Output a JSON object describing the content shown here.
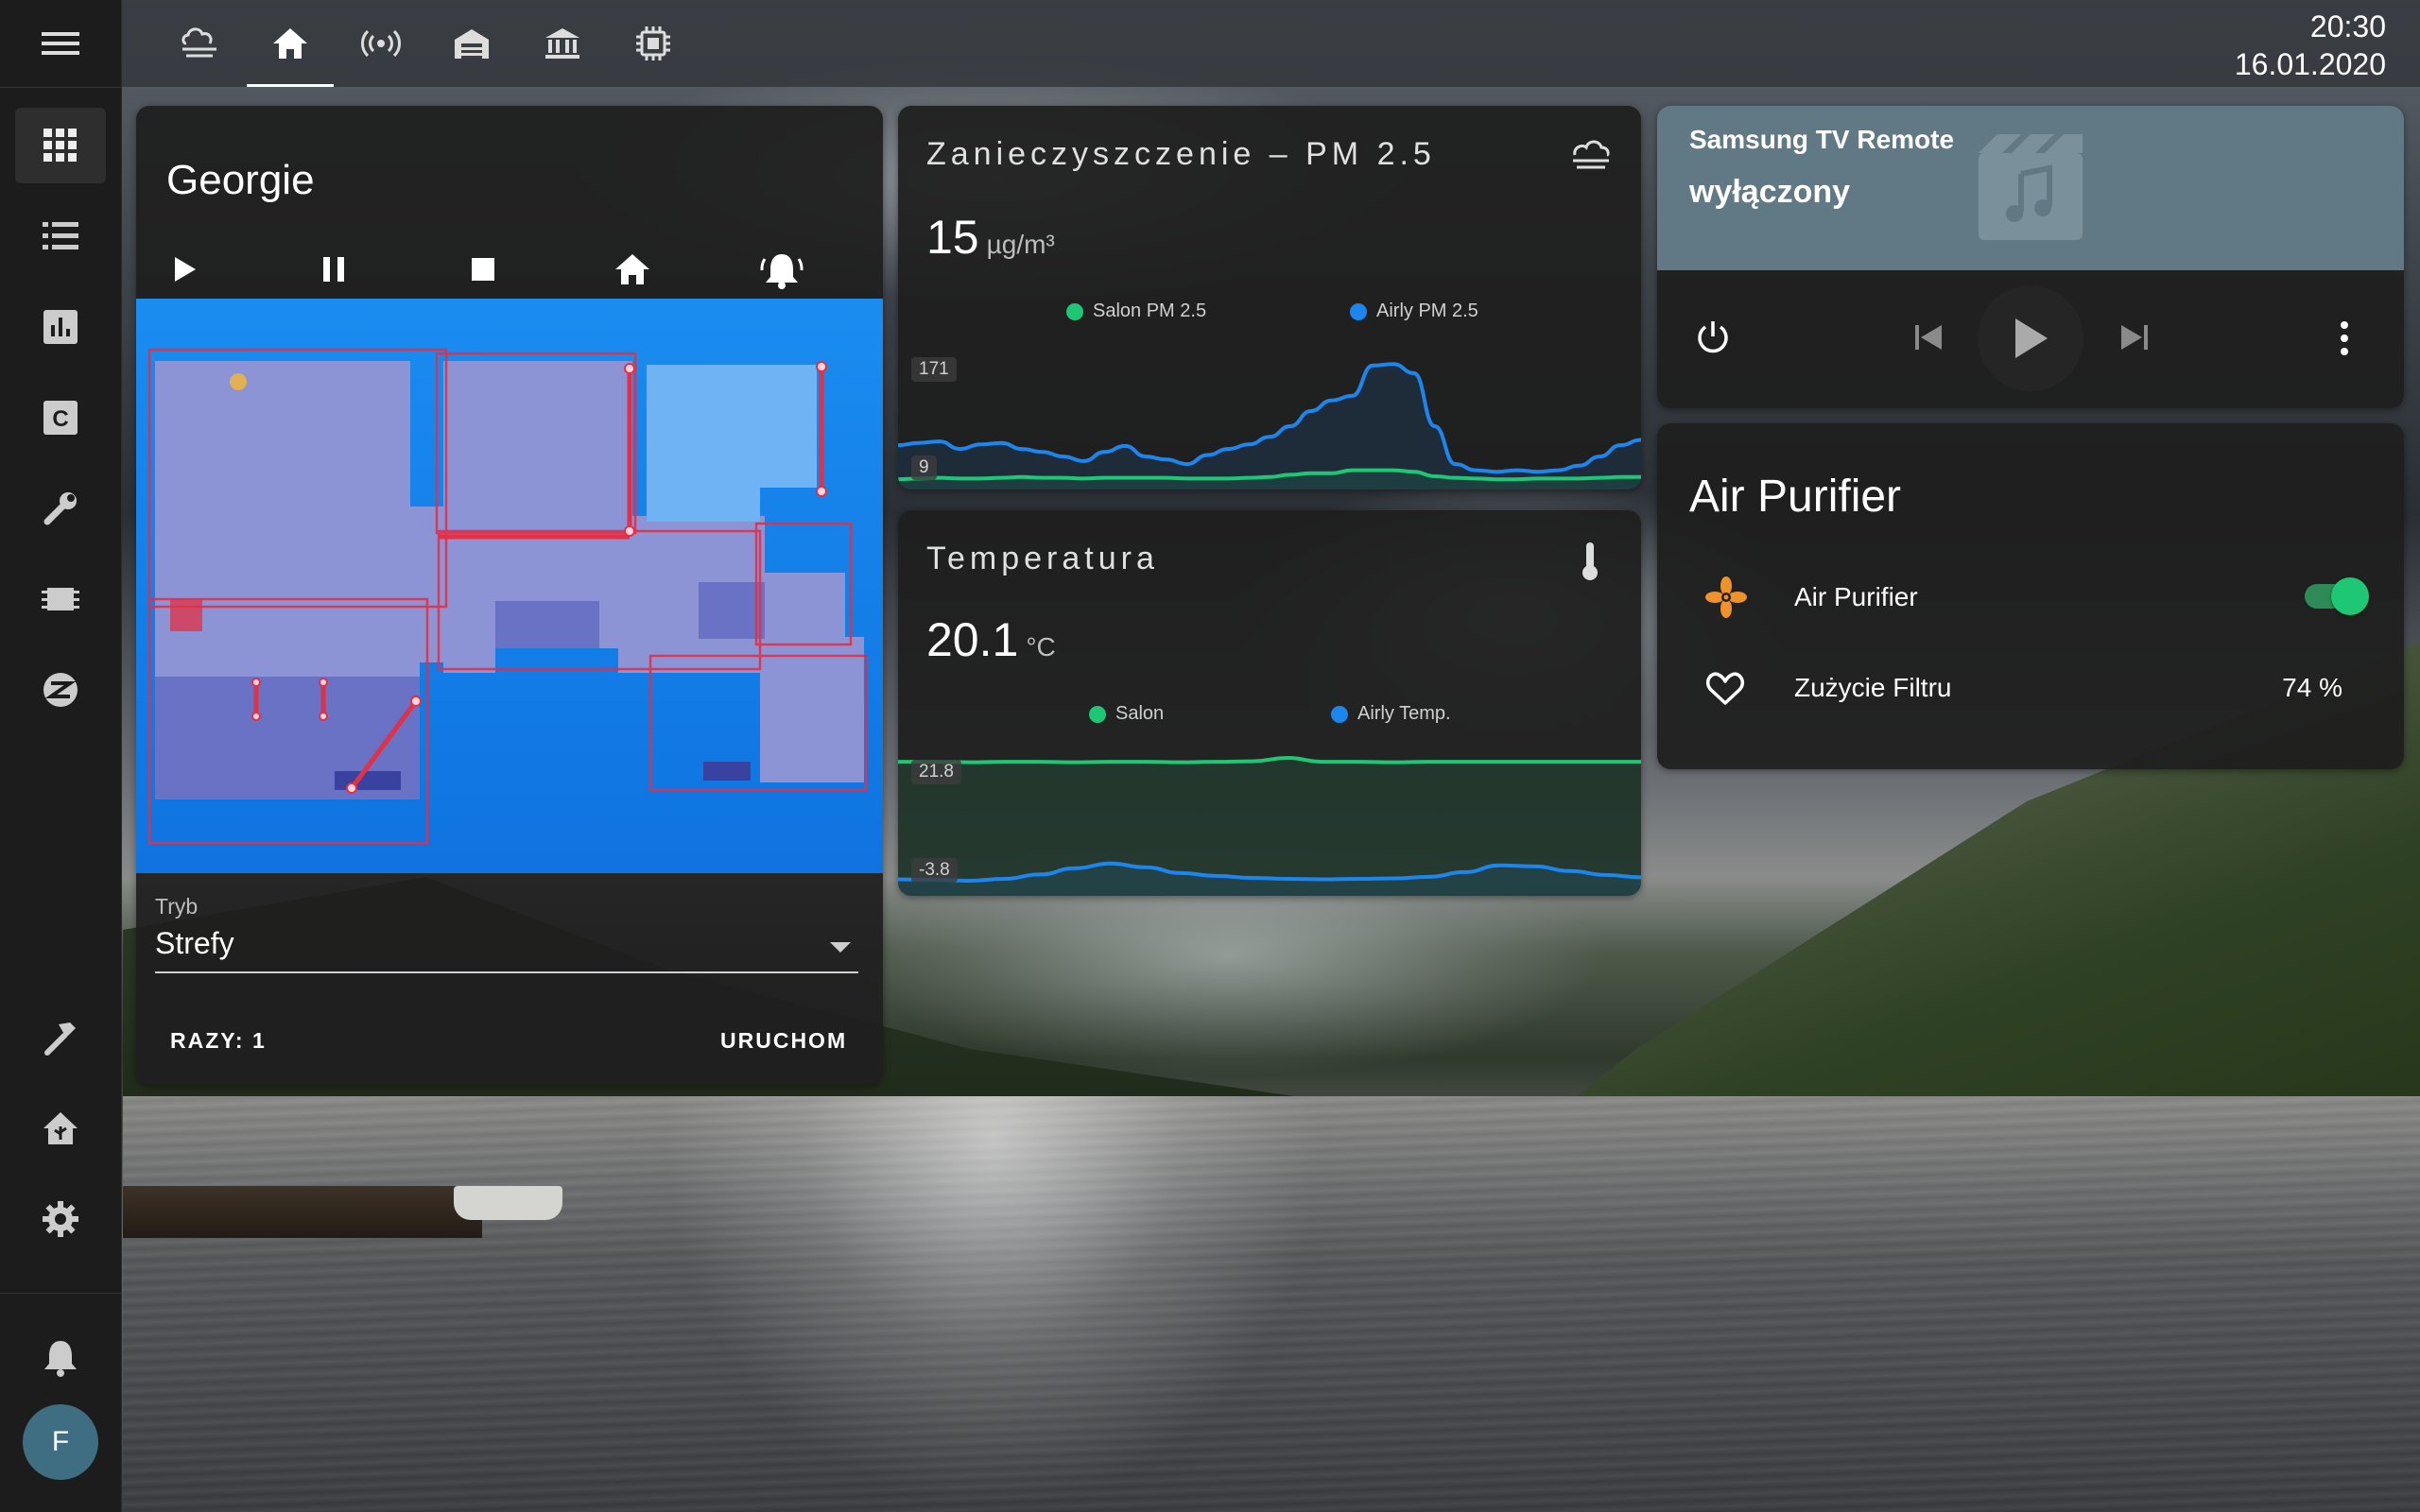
{
  "clock": {
    "time": "20:30",
    "date": "16.01.2020"
  },
  "user": {
    "initial": "F"
  },
  "sidebar": {
    "items": [
      {
        "name": "overview",
        "icon": "grid-icon"
      },
      {
        "name": "logbook",
        "icon": "list-icon"
      },
      {
        "name": "history",
        "icon": "chart-icon"
      },
      {
        "name": "hacs",
        "icon": "hacs-icon"
      },
      {
        "name": "configurator",
        "icon": "wrench-icon"
      },
      {
        "name": "esphome",
        "icon": "chip-icon"
      },
      {
        "name": "zigbee",
        "icon": "zigbee-icon"
      },
      {
        "name": "developer-tools",
        "icon": "hammer-icon"
      },
      {
        "name": "supervisor",
        "icon": "home-assistant-icon"
      },
      {
        "name": "settings",
        "icon": "gear-icon"
      },
      {
        "name": "notifications",
        "icon": "bell-icon"
      }
    ]
  },
  "tabs": [
    {
      "name": "weather",
      "icon": "weather-icon"
    },
    {
      "name": "home",
      "icon": "home-icon",
      "active": true
    },
    {
      "name": "wifi",
      "icon": "broadcast-icon"
    },
    {
      "name": "garage",
      "icon": "garage-icon"
    },
    {
      "name": "bank",
      "icon": "bank-icon"
    },
    {
      "name": "chip",
      "icon": "chip-icon"
    }
  ],
  "vacuum": {
    "title": "Georgie",
    "mode_label": "Tryb",
    "mode_value": "Strefy",
    "repeats_label": "RAZY: 1",
    "start_label": "URUCHOM",
    "controls": [
      "play-icon",
      "pause-icon",
      "stop-icon",
      "home-icon",
      "locate-bell-icon"
    ]
  },
  "pm25": {
    "title": "Zanieczyszczenie – PM 2.5",
    "value": "15",
    "unit": "µg/m³",
    "icon": "weather-haze-icon",
    "legend": [
      "Salon PM 2.5",
      "Airly PM 2.5"
    ],
    "tick_max": "171",
    "tick_min": "9",
    "colors": {
      "salon": "#1ec773",
      "airly": "#1c86ee"
    },
    "series": {
      "airly": [
        55,
        58,
        60,
        50,
        56,
        58,
        50,
        46,
        40,
        34,
        46,
        54,
        40,
        36,
        30,
        42,
        50,
        56,
        66,
        80,
        100,
        114,
        120,
        160,
        162,
        150,
        80,
        30,
        22,
        20,
        22,
        20,
        22,
        28,
        40,
        55,
        62
      ],
      "salon": [
        10,
        11,
        12,
        11,
        11,
        12,
        13,
        12,
        12,
        11,
        12,
        12,
        12,
        12,
        11,
        11,
        11,
        12,
        13,
        16,
        18,
        18,
        22,
        22,
        22,
        20,
        14,
        12,
        11,
        10,
        10,
        11,
        11,
        11,
        12,
        13,
        13
      ]
    }
  },
  "temperature": {
    "title": "Temperatura",
    "value": "20.1",
    "unit": "°C",
    "icon": "thermometer-icon",
    "legend": [
      "Salon",
      "Airly Temp."
    ],
    "tick_max": "21.8",
    "tick_min": "-3.8",
    "colors": {
      "salon": "#1ec773",
      "airly": "#1c86ee"
    },
    "series": {
      "salon": [
        21.0,
        21.0,
        20.9,
        21.0,
        21.0,
        20.9,
        21.0,
        21.0,
        20.9,
        21.0,
        21.1,
        21.8,
        21.0,
        21.0,
        20.9,
        21.0,
        21.0,
        21.0,
        21.0,
        21.0,
        21.0,
        21.0
      ],
      "airly": [
        -3.5,
        -3.6,
        -3.8,
        -3.4,
        -2.5,
        -1.2,
        -0.2,
        -1.0,
        -2.2,
        -2.8,
        -3.2,
        -3.4,
        -3.5,
        -3.4,
        -3.3,
        -3.0,
        -2.0,
        -0.6,
        -0.8,
        -1.8,
        -2.6,
        -3.1
      ]
    }
  },
  "tv": {
    "name": "Samsung TV Remote",
    "state": "wyłączony",
    "controls": [
      "power-icon",
      "skip-previous-icon",
      "play-icon",
      "skip-next-icon",
      "more-vertical-icon"
    ]
  },
  "air_purifier": {
    "title": "Air Purifier",
    "switch_label": "Air Purifier",
    "switch_on": true,
    "filter_label": "Zużycie Filtru",
    "filter_value": "74 %",
    "fan_color": "#f0922a"
  }
}
